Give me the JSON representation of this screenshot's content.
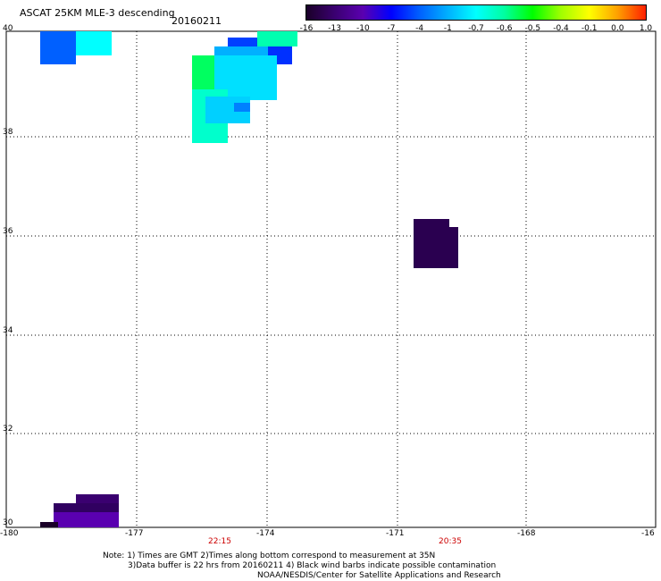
{
  "header": {
    "title": "ASCAT 25KM MLE-3 descending",
    "date": "20160211"
  },
  "colorbar": {
    "labels": [
      "-16",
      "-13",
      "-10",
      "-7",
      "-4",
      "-1",
      "-0.7",
      "-0.6",
      "-0.5",
      "-0.4",
      "-0.1",
      "0.0",
      "1.0"
    ],
    "colors": [
      "#1a0028",
      "#3a0070",
      "#5a00b0",
      "#0000ff",
      "#0060ff",
      "#00b0ff",
      "#00ffff",
      "#00ffa0",
      "#00ff00",
      "#a0ff00",
      "#ffff00",
      "#ffa000",
      "#ff2000"
    ]
  },
  "axes": {
    "lon_labels": [
      "-180",
      "-177",
      "-174",
      "-171",
      "-168",
      "-16"
    ],
    "lat_labels": [
      "40",
      "38",
      "36",
      "34",
      "32",
      "30"
    ],
    "lon_range": [
      -180,
      -165
    ],
    "lat_range": [
      30,
      40
    ]
  },
  "times": [
    "22:15",
    "20:35"
  ],
  "notes": {
    "line1": "Note: 1) Times are GMT 2)Times along bottom correspond to measurement at 35N",
    "line2": "3)Data buffer is 22 hrs from 20160211 4) Black wind barbs indicate possible contamination",
    "line3": "NOAA/NESDIS/Center for Satellite Applications and Research"
  }
}
